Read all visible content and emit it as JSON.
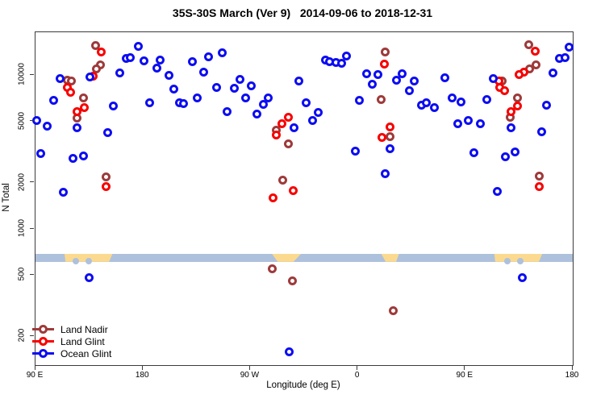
{
  "chart_data": {
    "type": "scatter",
    "title": "35S-30S March (Ver 9)   2014-09-06 to 2018-12-31",
    "xlabel": "Longitude (deg E)",
    "ylabel": "N Total",
    "x_axis": {
      "min": 90,
      "max": 540,
      "ticks": [
        {
          "deg": 90,
          "label": "90 E"
        },
        {
          "deg": 180,
          "label": "180"
        },
        {
          "deg": 270,
          "label": "90 W"
        },
        {
          "deg": 360,
          "label": "0"
        },
        {
          "deg": 450,
          "label": "90 E"
        },
        {
          "deg": 540,
          "label": "180"
        }
      ]
    },
    "y_axis": {
      "scale": "log",
      "min": 130,
      "max": 19050,
      "ticks": [
        200,
        500,
        1000,
        2000,
        5000,
        10000
      ]
    },
    "legend_position": "bottom-left",
    "grid": false,
    "map_band": {
      "sea_color": "#AEC1DC",
      "land_color": "#FBDA8F",
      "top_n": 690,
      "bottom_n": 612,
      "lands": [
        {
          "name": "australia-west",
          "shape": "au",
          "from": 113.5,
          "to": 154.5,
          "bites": [
            0.25,
            0.52
          ]
        },
        {
          "name": "south-america",
          "shape": "sa",
          "from": 288,
          "to": 312.5,
          "bites": []
        },
        {
          "name": "africa",
          "shape": "af",
          "from": 378.5,
          "to": 394.5,
          "bites": []
        },
        {
          "name": "australia-east",
          "shape": "au",
          "from": 473.5,
          "to": 514.5,
          "bites": [
            0.28,
            0.55
          ]
        }
      ]
    },
    "series": [
      {
        "name": "Land Nadir",
        "color": "#9E3A3A",
        "marker": "open-circle",
        "points": [
          [
            140,
            15700
          ],
          [
            144.7,
            11750
          ],
          [
            140.7,
            11050
          ],
          [
            117,
            9330
          ],
          [
            120.4,
            9225
          ],
          [
            129.9,
            7080
          ],
          [
            124.5,
            5280
          ],
          [
            148.8,
            2190
          ],
          [
            292,
            4415
          ],
          [
            301.5,
            3595
          ],
          [
            296.8,
            2065
          ],
          [
            382.6,
            14250
          ],
          [
            379.3,
            6980
          ],
          [
            386.7,
            4010
          ],
          [
            503,
            15850
          ],
          [
            509,
            11750
          ],
          [
            503.7,
            11050
          ],
          [
            480.7,
            9225
          ],
          [
            493.5,
            7080
          ],
          [
            487.4,
            5360
          ],
          [
            511.7,
            2220
          ],
          [
            305.5,
            461
          ],
          [
            389.4,
            295
          ],
          [
            288,
            553
          ]
        ]
      },
      {
        "name": "Land Glint",
        "color": "#F80000",
        "marker": "open-circle",
        "points": [
          [
            145.4,
            14250
          ],
          [
            138,
            9910
          ],
          [
            116.4,
            8375
          ],
          [
            119.7,
            7780
          ],
          [
            131.2,
            6195
          ],
          [
            125.1,
            5830
          ],
          [
            148.8,
            1875
          ],
          [
            301.5,
            5300
          ],
          [
            296.1,
            4810
          ],
          [
            291.4,
            4105
          ],
          [
            288.7,
            1600
          ],
          [
            305.6,
            1785
          ],
          [
            382,
            11885
          ],
          [
            386.7,
            4633
          ],
          [
            380,
            3917
          ],
          [
            508.6,
            14420
          ],
          [
            499,
            10520
          ],
          [
            495,
            10160
          ],
          [
            478,
            9120
          ],
          [
            478.7,
            8375
          ],
          [
            482.7,
            7890
          ],
          [
            493.5,
            6340
          ],
          [
            488,
            5830
          ],
          [
            511.7,
            1875
          ]
        ]
      },
      {
        "name": "Ocean Glint",
        "color": "#0D0DF2",
        "marker": "open-circle",
        "points": [
          [
            175.9,
            15500
          ],
          [
            165.7,
            12940
          ],
          [
            169.7,
            13100
          ],
          [
            180.6,
            12470
          ],
          [
            194.6,
            12620
          ],
          [
            191.4,
            11190
          ],
          [
            160.3,
            10400
          ],
          [
            135.3,
            9795
          ],
          [
            110.3,
            9550
          ],
          [
            104.9,
            6900
          ],
          [
            155.5,
            6340
          ],
          [
            185.3,
            6650
          ],
          [
            90.7,
            5105
          ],
          [
            100.1,
            4690
          ],
          [
            125.1,
            4575
          ],
          [
            150.8,
            4255
          ],
          [
            94.7,
            3076
          ],
          [
            121.1,
            2890
          ],
          [
            130.5,
            3000
          ],
          [
            113.6,
            1742
          ],
          [
            246.1,
            14060
          ],
          [
            234.6,
            13240
          ],
          [
            221.1,
            12300
          ],
          [
            201.5,
            10000
          ],
          [
            230.6,
            10520
          ],
          [
            205.6,
            8166
          ],
          [
            241.4,
            8375
          ],
          [
            256.3,
            8276
          ],
          [
            261,
            9440
          ],
          [
            270.5,
            8570
          ],
          [
            265.7,
            7080
          ],
          [
            225.8,
            7080
          ],
          [
            210.3,
            6650
          ],
          [
            214.3,
            6575
          ],
          [
            280.6,
            6500
          ],
          [
            284.6,
            7080
          ],
          [
            250.8,
            5830
          ],
          [
            275.8,
            5560
          ],
          [
            310.3,
            9120
          ],
          [
            306.3,
            4575
          ],
          [
            332.6,
            12620
          ],
          [
            336.6,
            12300
          ],
          [
            342,
            12140
          ],
          [
            346.1,
            11990
          ],
          [
            350.8,
            13400
          ],
          [
            367.7,
            10170
          ],
          [
            376.5,
            10050
          ],
          [
            372.4,
            8780
          ],
          [
            392.7,
            9330
          ],
          [
            397.4,
            10170
          ],
          [
            406.9,
            9120
          ],
          [
            403.5,
            7890
          ],
          [
            361.6,
            6900
          ],
          [
            317,
            6650
          ],
          [
            326.5,
            5760
          ],
          [
            321.8,
            5105
          ],
          [
            413,
            6420
          ],
          [
            417.7,
            6650
          ],
          [
            423.8,
            6180
          ],
          [
            386.7,
            3340
          ],
          [
            357.6,
            3220
          ],
          [
            382.6,
            2290
          ],
          [
            432.6,
            9655
          ],
          [
            473.2,
            9550
          ],
          [
            438.7,
            7080
          ],
          [
            446.1,
            6725
          ],
          [
            467.8,
            6980
          ],
          [
            517.8,
            6420
          ],
          [
            443.4,
            4810
          ],
          [
            452.8,
            5105
          ],
          [
            462.3,
            4810
          ],
          [
            488,
            4575
          ],
          [
            513.7,
            4310
          ],
          [
            457,
            3120
          ],
          [
            483.4,
            2935
          ],
          [
            491.5,
            3157
          ],
          [
            476.6,
            1764
          ],
          [
            523.2,
            10400
          ],
          [
            528.6,
            12940
          ],
          [
            533.4,
            13100
          ],
          [
            536.7,
            15320
          ],
          [
            134.6,
            484
          ],
          [
            497.6,
            484
          ],
          [
            302.2,
            158
          ]
        ]
      }
    ]
  }
}
